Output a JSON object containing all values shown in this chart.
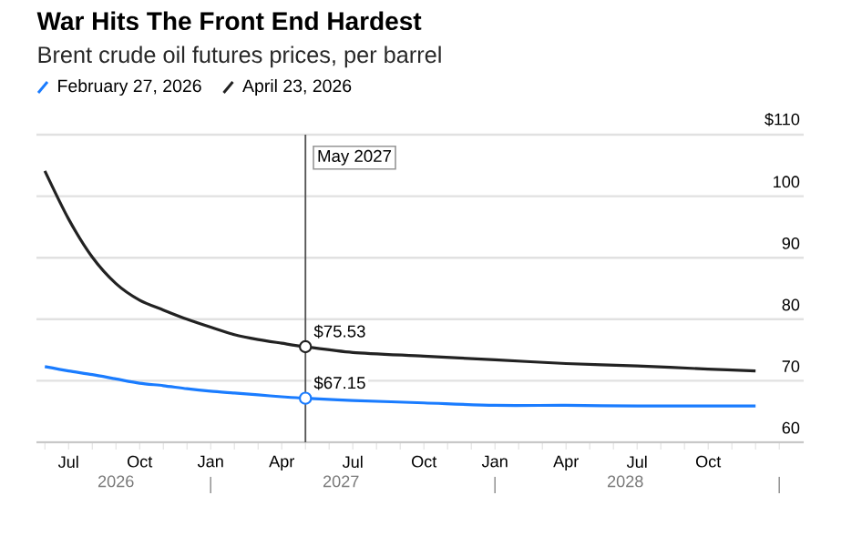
{
  "chart_data": {
    "type": "line",
    "title": "War Hits The Front End Hardest",
    "subtitle": "Brent crude oil futures prices, per barrel",
    "x": [
      "2026-06",
      "2026-07",
      "2026-08",
      "2026-09",
      "2026-10",
      "2026-11",
      "2026-12",
      "2027-01",
      "2027-02",
      "2027-03",
      "2027-04",
      "2027-05",
      "2027-07",
      "2027-10",
      "2028-01",
      "2028-04",
      "2028-07",
      "2028-10",
      "2028-12"
    ],
    "series": [
      {
        "name": "February 27, 2026",
        "color": "#1a7cff",
        "values": [
          72.3,
          71.6,
          71.0,
          70.3,
          69.6,
          69.2,
          68.7,
          68.3,
          68.0,
          67.7,
          67.4,
          67.15,
          66.8,
          66.4,
          66.0,
          66.0,
          65.9,
          65.9,
          65.9
        ],
        "value_labels": [
          null,
          null,
          null,
          null,
          null,
          null,
          null,
          null,
          null,
          null,
          null,
          "$67.15",
          null,
          null,
          null,
          null,
          null,
          null,
          null
        ]
      },
      {
        "name": "April 23, 2026",
        "color": "#222222",
        "values": [
          104.1,
          96.3,
          90.1,
          85.8,
          83.1,
          81.5,
          80.0,
          78.7,
          77.5,
          76.7,
          76.1,
          75.53,
          74.6,
          74.0,
          73.4,
          72.8,
          72.4,
          71.9,
          71.6
        ],
        "value_labels": [
          null,
          null,
          null,
          null,
          null,
          null,
          null,
          null,
          null,
          null,
          null,
          "$75.53",
          null,
          null,
          null,
          null,
          null,
          null,
          null
        ]
      }
    ],
    "xlim": [
      "2026-05-21",
      "2029-02-02"
    ],
    "xticks": [
      {
        "value": "2026-06",
        "label": null
      },
      {
        "value": "2026-07",
        "label": "Jul"
      },
      {
        "value": "2026-08",
        "label": null
      },
      {
        "value": "2026-09",
        "label": null
      },
      {
        "value": "2026-10",
        "label": "Oct"
      },
      {
        "value": "2026-11",
        "label": null
      },
      {
        "value": "2026-12",
        "label": null
      },
      {
        "value": "2027-01",
        "label": "Jan"
      },
      {
        "value": "2027-02",
        "label": null
      },
      {
        "value": "2027-03",
        "label": null
      },
      {
        "value": "2027-04",
        "label": "Apr"
      },
      {
        "value": "2027-05",
        "label": null
      },
      {
        "value": "2027-06",
        "label": null
      },
      {
        "value": "2027-07",
        "label": "Jul"
      },
      {
        "value": "2027-08",
        "label": null
      },
      {
        "value": "2027-09",
        "label": null
      },
      {
        "value": "2027-10",
        "label": "Oct"
      },
      {
        "value": "2027-11",
        "label": null
      },
      {
        "value": "2027-12",
        "label": null
      },
      {
        "value": "2028-01",
        "label": "Jan"
      },
      {
        "value": "2028-02",
        "label": null
      },
      {
        "value": "2028-03",
        "label": null
      },
      {
        "value": "2028-04",
        "label": "Apr"
      },
      {
        "value": "2028-05",
        "label": null
      },
      {
        "value": "2028-06",
        "label": null
      },
      {
        "value": "2028-07",
        "label": "Jul"
      },
      {
        "value": "2028-08",
        "label": null
      },
      {
        "value": "2028-09",
        "label": null
      },
      {
        "value": "2028-10",
        "label": "Oct"
      },
      {
        "value": "2028-11",
        "label": null
      },
      {
        "value": "2028-12",
        "label": null
      },
      {
        "value": "2029-01",
        "label": null
      }
    ],
    "ylim": [
      60,
      110
    ],
    "yticks": [
      60,
      70,
      80,
      90,
      100,
      {
        "value": 110,
        "label": "$110"
      }
    ],
    "grid": "y",
    "legend": "top left",
    "marker": "none",
    "ref_lines": [
      {
        "axis": "x",
        "value": "2027-05",
        "label": "May 2027",
        "color": "#555555"
      }
    ],
    "annotations": [
      "2026",
      "2027",
      "2028"
    ]
  }
}
